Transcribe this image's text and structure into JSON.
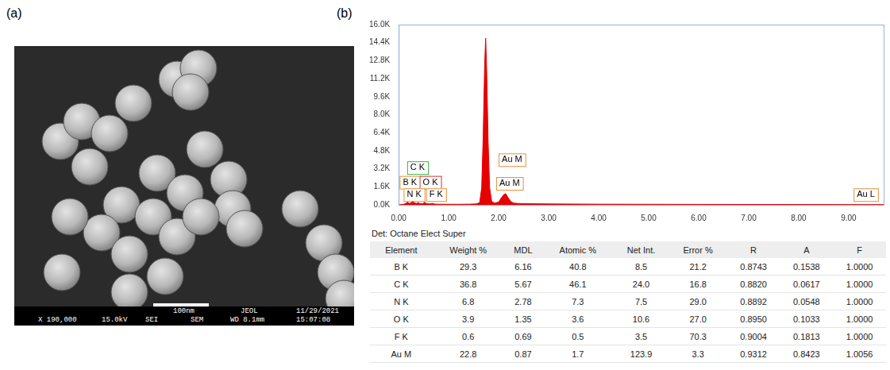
{
  "panel_labels": [
    "(a)",
    "(b)"
  ],
  "sem_image": {
    "caption_top": [
      "100nm",
      "JEOL",
      "11/29/2021"
    ],
    "caption_bottom": [
      "X 190,000",
      "15.0kV",
      "SEI",
      "SEM",
      "WD 8.1mm",
      "15:07:08"
    ]
  },
  "chart_data": {
    "type": "area",
    "color": "#e60000",
    "x": [
      0,
      0.1,
      0.15,
      0.18,
      0.21,
      0.26,
      0.28,
      0.31,
      0.36,
      0.39,
      0.42,
      0.48,
      0.52,
      0.56,
      0.62,
      0.68,
      0.72,
      0.8,
      1.0,
      1.2,
      1.4,
      1.55,
      1.62,
      1.66,
      1.69,
      1.72,
      1.74,
      1.76,
      1.79,
      1.82,
      1.86,
      1.92,
      2.0,
      2.05,
      2.1,
      2.14,
      2.18,
      2.24,
      2.3,
      2.4,
      2.6,
      3.0,
      3.5,
      4.0,
      5.0,
      6.0,
      7.0,
      8.0,
      9.0,
      9.7
    ],
    "values": [
      0,
      50,
      150,
      250,
      120,
      200,
      380,
      180,
      120,
      200,
      120,
      100,
      230,
      110,
      80,
      130,
      70,
      60,
      50,
      50,
      60,
      80,
      200,
      1500,
      6000,
      12500,
      14800,
      12000,
      5500,
      1500,
      300,
      150,
      250,
      600,
      900,
      1000,
      700,
      300,
      150,
      120,
      100,
      80,
      70,
      60,
      50,
      40,
      35,
      30,
      25,
      20
    ],
    "xlim": [
      0,
      9.7
    ],
    "xticks": [
      {
        "value": 0,
        "label": "0.00"
      },
      {
        "value": 1,
        "label": "1.00"
      },
      {
        "value": 2,
        "label": "2.00"
      },
      {
        "value": 3,
        "label": "3.00"
      },
      {
        "value": 4,
        "label": "4.00"
      },
      {
        "value": 5,
        "label": "5.00"
      },
      {
        "value": 6,
        "label": "6.00"
      },
      {
        "value": 7,
        "label": "7.00"
      },
      {
        "value": 8,
        "label": "8.00"
      },
      {
        "value": 9,
        "label": "9.00"
      }
    ],
    "ylim": [
      0,
      16000
    ],
    "yticks": [
      {
        "value": 0,
        "label": "0.0K"
      },
      {
        "value": 1600,
        "label": "1.6K"
      },
      {
        "value": 3200,
        "label": "3.2K"
      },
      {
        "value": 4800,
        "label": "4.8K"
      },
      {
        "value": 6400,
        "label": "6.4K"
      },
      {
        "value": 8000,
        "label": "8.0K"
      },
      {
        "value": 9600,
        "label": "9.6K"
      },
      {
        "value": 11200,
        "label": "11.2K"
      },
      {
        "value": 12800,
        "label": "12.8K"
      },
      {
        "value": 14400,
        "label": "14.4K"
      },
      {
        "value": 16000,
        "label": "16.0K"
      }
    ],
    "grid": false,
    "annotations": [
      {
        "text": "B K",
        "x": 0.02,
        "y": 2000,
        "color": "#e8913a"
      },
      {
        "text": "C K",
        "x": 0.17,
        "y": 3300,
        "color": "#3cb043"
      },
      {
        "text": "O K",
        "x": 0.42,
        "y": 2000,
        "color": "#d9342b"
      },
      {
        "text": "N K",
        "x": 0.1,
        "y": 900,
        "color": "#e8913a"
      },
      {
        "text": "F K",
        "x": 0.55,
        "y": 900,
        "color": "#e8913a"
      },
      {
        "text": "Au M",
        "x": 2.0,
        "y": 4000,
        "color": "#e8913a"
      },
      {
        "text": "Au M",
        "x": 1.95,
        "y": 1900,
        "color": "#e8913a"
      },
      {
        "text": "Au L",
        "x": 9.1,
        "y": 900,
        "color": "#e8913a"
      }
    ]
  },
  "detector": "Det: Octane Elect Super",
  "table": {
    "columns": [
      "Element",
      "Weight %",
      "MDL",
      "Atomic %",
      "Net Int.",
      "Error %",
      "R",
      "A",
      "F"
    ],
    "rows": [
      [
        "B K",
        "29.3",
        "6.16",
        "40.8",
        "8.5",
        "21.2",
        "0.8743",
        "0.1538",
        "1.0000"
      ],
      [
        "C K",
        "36.8",
        "5.67",
        "46.1",
        "24.0",
        "16.8",
        "0.8820",
        "0.0617",
        "1.0000"
      ],
      [
        "N K",
        "6.8",
        "2.78",
        "7.3",
        "7.5",
        "29.0",
        "0.8892",
        "0.0548",
        "1.0000"
      ],
      [
        "O K",
        "3.9",
        "1.35",
        "3.6",
        "10.6",
        "27.0",
        "0.8950",
        "0.1033",
        "1.0000"
      ],
      [
        "F K",
        "0.6",
        "0.69",
        "0.5",
        "3.5",
        "70.3",
        "0.9004",
        "0.1813",
        "1.0000"
      ],
      [
        "Au M",
        "22.8",
        "0.87",
        "1.7",
        "123.9",
        "3.3",
        "0.9312",
        "0.8423",
        "1.0056"
      ]
    ]
  }
}
